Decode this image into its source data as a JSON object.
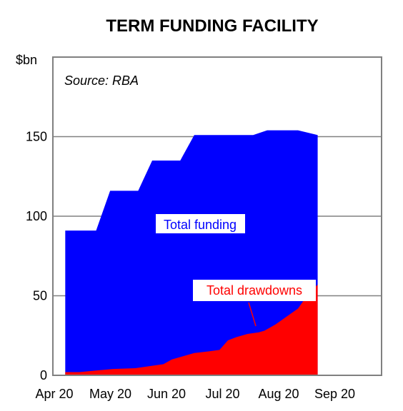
{
  "chart_data": {
    "type": "area",
    "title": "TERM FUNDING FACILITY",
    "ylabel": "$bn",
    "annotation": "Source: RBA",
    "ylim": [
      0,
      200
    ],
    "yticks": [
      0,
      50,
      100,
      150
    ],
    "xlim": [
      0,
      5.9
    ],
    "x_ticks": [
      {
        "label": "Apr 20",
        "x": 0
      },
      {
        "label": "May 20",
        "x": 1
      },
      {
        "label": "Jun 20",
        "x": 2
      },
      {
        "label": "Jul 20",
        "x": 3
      },
      {
        "label": "Aug 20",
        "x": 4
      },
      {
        "label": "Sep 20",
        "x": 5
      }
    ],
    "grid": "horizontal",
    "colors": {
      "total_funding": "#0000ff",
      "total_drawdowns": "#ff0000"
    },
    "series": [
      {
        "name": "Total funding",
        "x": [
          0.45,
          1.0,
          1.25,
          1.75,
          2.0,
          2.5,
          2.75,
          3.25,
          3.8,
          4.05,
          4.6,
          4.95
        ],
        "y": [
          91,
          91,
          116,
          116,
          135,
          135,
          151,
          151,
          151,
          154,
          154,
          151
        ]
      },
      {
        "name": "Total drawdowns",
        "x": [
          0.45,
          0.7,
          1.0,
          1.3,
          1.7,
          2.0,
          2.2,
          2.35,
          2.55,
          2.75,
          3.0,
          3.2,
          3.35,
          3.5,
          3.7,
          3.9,
          4.0,
          4.2,
          4.4,
          4.6,
          4.8,
          4.95
        ],
        "y": [
          2,
          2,
          3,
          4,
          4.5,
          6,
          7,
          10,
          12,
          14,
          15,
          16,
          22,
          24,
          26,
          27,
          28,
          32,
          37,
          42,
          52,
          57
        ]
      }
    ],
    "series_labels": [
      "Total funding",
      "Total drawdowns"
    ]
  }
}
